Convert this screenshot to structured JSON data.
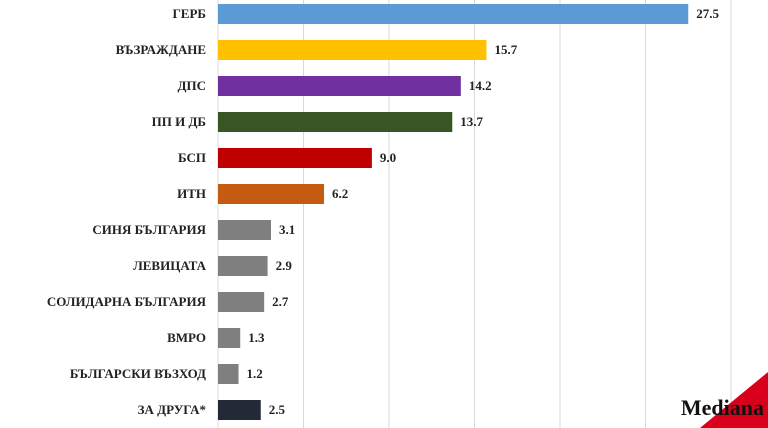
{
  "chart_data": {
    "type": "barh",
    "categories": [
      "ГЕРБ",
      "ВЪЗРАЖДАНЕ",
      "ДПС",
      "ПП И ДБ",
      "БСП",
      "ИТН",
      "СИНЯ БЪЛГАРИЯ",
      "ЛЕВИЦАТА",
      "СОЛИДАРНА БЪЛГАРИЯ",
      "ВМРО",
      "БЪЛГАРСКИ ВЪЗХОД",
      "ЗА ДРУГА*"
    ],
    "values": [
      27.5,
      15.7,
      14.2,
      13.7,
      9.0,
      6.2,
      3.1,
      2.9,
      2.7,
      1.3,
      1.2,
      2.5
    ],
    "value_labels": [
      "27.5",
      "15.7",
      "14.2",
      "13.7",
      "9.0",
      "6.2",
      "3.1",
      "2.9",
      "2.7",
      "1.3",
      "1.2",
      "2.5"
    ],
    "colors": [
      "#5b9bd5",
      "#ffc000",
      "#7030a0",
      "#375623",
      "#c00000",
      "#c55a11",
      "#7f7f7f",
      "#7f7f7f",
      "#7f7f7f",
      "#7f7f7f",
      "#7f7f7f",
      "#222a35"
    ],
    "xlim": [
      0,
      30
    ],
    "xticks": [
      0,
      5,
      10,
      15,
      20,
      25,
      30
    ],
    "grid": true,
    "source": "Mediana"
  }
}
